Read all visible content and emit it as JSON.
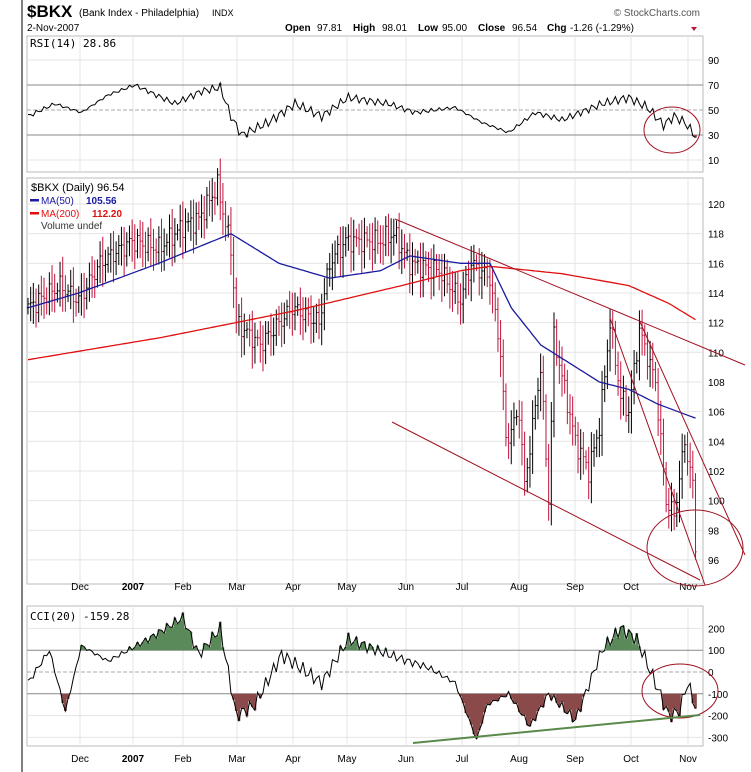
{
  "header": {
    "symbol": "$BKX",
    "name": "(Bank Index - Philadelphia)",
    "exchange": "INDX",
    "date": "2-Nov-2007",
    "copyright": "© StockCharts.com",
    "open_label": "Open",
    "open": "97.81",
    "high_label": "High",
    "high": "98.01",
    "low_label": "Low",
    "low": "95.00",
    "close_label": "Close",
    "close": "96.54",
    "chg_label": "Chg",
    "chg": "-1.26 (-1.29%)"
  },
  "colors": {
    "up": "#000000",
    "down": "#c0143c",
    "ma50": "#1a1aa0",
    "ma200": "#e01010",
    "fill_pos": "#5a8a5a",
    "fill_neg": "#8a4a4a",
    "annot": "#a01020",
    "green_line": "#5a8a4a"
  },
  "chart_data": [
    {
      "type": "line",
      "title": "RSI(14) 28.86",
      "ylim": [
        0,
        100
      ],
      "yticks": [
        "90",
        "70",
        "50",
        "30",
        "10"
      ],
      "ytick_values": [
        90,
        70,
        50,
        30,
        10
      ],
      "points": [
        [
          0,
          45
        ],
        [
          10,
          55
        ],
        [
          20,
          48
        ],
        [
          30,
          62
        ],
        [
          40,
          70
        ],
        [
          45,
          65
        ],
        [
          55,
          55
        ],
        [
          65,
          65
        ],
        [
          72,
          68
        ],
        [
          76,
          45
        ],
        [
          80,
          30
        ],
        [
          90,
          40
        ],
        [
          100,
          55
        ],
        [
          110,
          45
        ],
        [
          120,
          60
        ],
        [
          135,
          55
        ],
        [
          145,
          48
        ],
        [
          160,
          52
        ],
        [
          170,
          40
        ],
        [
          180,
          32
        ],
        [
          190,
          48
        ],
        [
          200,
          42
        ],
        [
          215,
          55
        ],
        [
          225,
          60
        ],
        [
          232,
          52
        ],
        [
          238,
          38
        ],
        [
          242,
          45
        ],
        [
          246,
          40
        ],
        [
          250,
          29
        ]
      ]
    },
    {
      "type": "candlestick",
      "legend": {
        "price": "$BKX (Daily) 96.54",
        "ma50_label": "MA(50)",
        "ma50": "105.56",
        "ma200_label": "MA(200)",
        "ma200": "112.20",
        "volume": "Volume undef"
      },
      "yticks": [
        "120",
        "118",
        "116",
        "114",
        "112",
        "110",
        "108",
        "106",
        "104",
        "102",
        "100",
        "98",
        "96"
      ],
      "ytick_values": [
        120,
        118,
        116,
        114,
        112,
        110,
        108,
        106,
        104,
        102,
        100,
        98,
        96
      ],
      "close_points": [
        [
          0,
          113
        ],
        [
          12,
          114.5
        ],
        [
          19,
          113.5
        ],
        [
          27,
          116
        ],
        [
          39,
          117.5
        ],
        [
          49,
          117
        ],
        [
          58,
          118.5
        ],
        [
          64,
          119
        ],
        [
          71,
          121.2
        ],
        [
          76,
          117
        ],
        [
          78,
          112
        ],
        [
          87,
          110.5
        ],
        [
          99,
          113
        ],
        [
          109,
          112
        ],
        [
          113,
          116
        ],
        [
          119,
          117.5
        ],
        [
          132,
          117.5
        ],
        [
          137,
          118
        ],
        [
          143,
          116
        ],
        [
          154,
          115.5
        ],
        [
          162,
          113.5
        ],
        [
          166,
          116
        ],
        [
          173,
          115
        ],
        [
          177,
          110
        ],
        [
          179,
          104
        ],
        [
          184,
          106
        ],
        [
          186,
          101
        ],
        [
          192,
          109
        ],
        [
          195,
          100
        ],
        [
          197,
          111
        ],
        [
          205,
          104
        ],
        [
          210,
          102
        ],
        [
          214,
          105
        ],
        [
          218,
          112
        ],
        [
          222,
          107
        ],
        [
          225,
          106
        ],
        [
          229,
          111.5
        ],
        [
          235,
          108
        ],
        [
          239,
          100
        ],
        [
          242,
          99
        ],
        [
          246,
          104
        ],
        [
          249,
          101
        ],
        [
          250,
          96.54
        ]
      ],
      "ma50_points": [
        [
          0,
          113
        ],
        [
          19,
          114
        ],
        [
          49,
          116
        ],
        [
          76,
          118
        ],
        [
          94,
          116
        ],
        [
          113,
          115
        ],
        [
          132,
          115.5
        ],
        [
          143,
          116.5
        ],
        [
          162,
          116
        ],
        [
          173,
          116
        ],
        [
          181,
          113
        ],
        [
          192,
          110.5
        ],
        [
          214,
          108
        ],
        [
          225,
          107.5
        ],
        [
          236,
          106.5
        ],
        [
          250,
          105.56
        ]
      ],
      "ma200_points": [
        [
          0,
          109.5
        ],
        [
          50,
          111
        ],
        [
          100,
          112.8
        ],
        [
          140,
          114.5
        ],
        [
          162,
          115.5
        ],
        [
          173,
          115.8
        ],
        [
          200,
          115.3
        ],
        [
          225,
          114.5
        ],
        [
          240,
          113.3
        ],
        [
          250,
          112.2
        ]
      ]
    },
    {
      "type": "line",
      "title": "CCI(20) -159.28",
      "ylim": [
        -350,
        280
      ],
      "yticks": [
        "200",
        "100",
        "0",
        "-100",
        "-200",
        "-300"
      ],
      "ytick_values": [
        200,
        100,
        0,
        -100,
        -200,
        -300
      ],
      "points": [
        [
          0,
          -50
        ],
        [
          8,
          100
        ],
        [
          14,
          -180
        ],
        [
          20,
          120
        ],
        [
          30,
          50
        ],
        [
          45,
          150
        ],
        [
          58,
          250
        ],
        [
          64,
          80
        ],
        [
          72,
          200
        ],
        [
          78,
          -200
        ],
        [
          85,
          -150
        ],
        [
          95,
          80
        ],
        [
          110,
          -50
        ],
        [
          120,
          150
        ],
        [
          135,
          80
        ],
        [
          150,
          20
        ],
        [
          160,
          -50
        ],
        [
          168,
          -310
        ],
        [
          172,
          -150
        ],
        [
          180,
          -100
        ],
        [
          188,
          -250
        ],
        [
          195,
          -100
        ],
        [
          205,
          -220
        ],
        [
          215,
          100
        ],
        [
          222,
          200
        ],
        [
          228,
          150
        ],
        [
          235,
          -50
        ],
        [
          240,
          -200
        ],
        [
          244,
          -180
        ],
        [
          247,
          -50
        ],
        [
          250,
          -159
        ]
      ]
    }
  ],
  "x_ticks": [
    "Dec",
    "2007",
    "Feb",
    "Mar",
    "Apr",
    "May",
    "Jun",
    "Jul",
    "Aug",
    "Sep",
    "Oct",
    "Nov"
  ]
}
